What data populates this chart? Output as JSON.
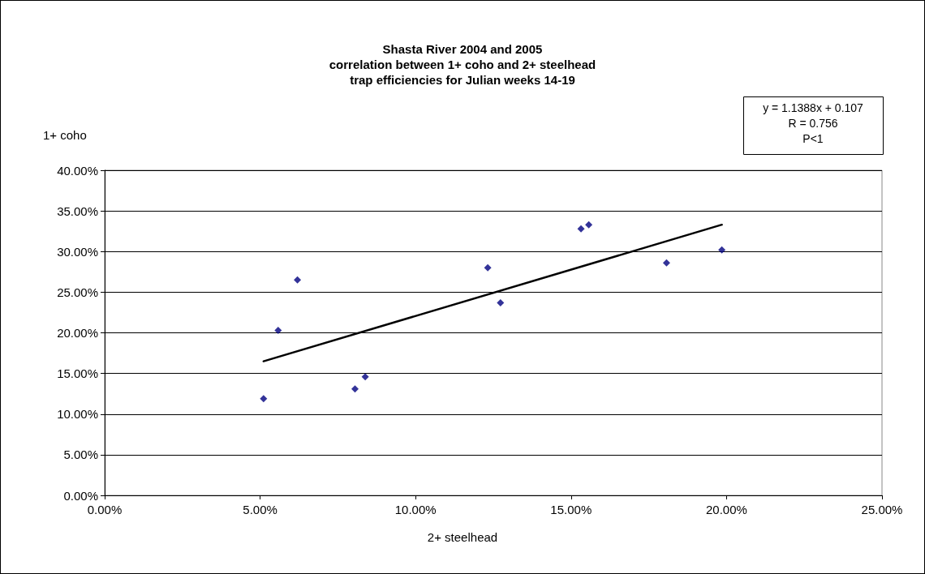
{
  "chart_data": {
    "type": "scatter",
    "title": "Shasta River 2004 and 2005\ncorrelation between 1+ coho and 2+ steelhead\ntrap efficiencies for Julian weeks 14-19",
    "xlabel": "2+ steelhead",
    "ylabel": "1+ coho",
    "annotations": [
      "y = 1.1388x + 0.107",
      "R = 0.756",
      "P<1"
    ],
    "series": [
      {
        "color": "#000080",
        "marker": "diamond",
        "x": [
          5.11,
          5.58,
          6.2,
          8.05,
          8.38,
          12.32,
          12.73,
          15.32,
          15.57,
          18.07,
          19.85
        ],
        "values": [
          11.9,
          20.3,
          26.5,
          13.1,
          14.6,
          28.0,
          23.7,
          32.8,
          33.3,
          28.6,
          30.2
        ]
      },
      {
        "type": "line",
        "color": "#000000",
        "marker": "none",
        "line_style": "solid",
        "x": [
          5.11,
          19.85
        ],
        "values": [
          16.5,
          33.3
        ]
      }
    ],
    "xlim": [
      0,
      25
    ],
    "xticks": [
      {
        "value": 0,
        "label": "0.00%"
      },
      {
        "value": 5,
        "label": "5.00%"
      },
      {
        "value": 10,
        "label": "10.00%"
      },
      {
        "value": 15,
        "label": "15.00%"
      },
      {
        "value": 20,
        "label": "20.00%"
      },
      {
        "value": 25,
        "label": "25.00%"
      }
    ],
    "ylim": [
      0,
      40
    ],
    "yticks": [
      {
        "value": 0,
        "label": "0.00%"
      },
      {
        "value": 5,
        "label": "5.00%"
      },
      {
        "value": 10,
        "label": "10.00%"
      },
      {
        "value": 15,
        "label": "15.00%"
      },
      {
        "value": 20,
        "label": "20.00%"
      },
      {
        "value": 25,
        "label": "25.00%"
      },
      {
        "value": 30,
        "label": "30.00%"
      },
      {
        "value": 35,
        "label": "35.00%"
      },
      {
        "value": 40,
        "label": "40.00%"
      }
    ],
    "grid": "y"
  }
}
